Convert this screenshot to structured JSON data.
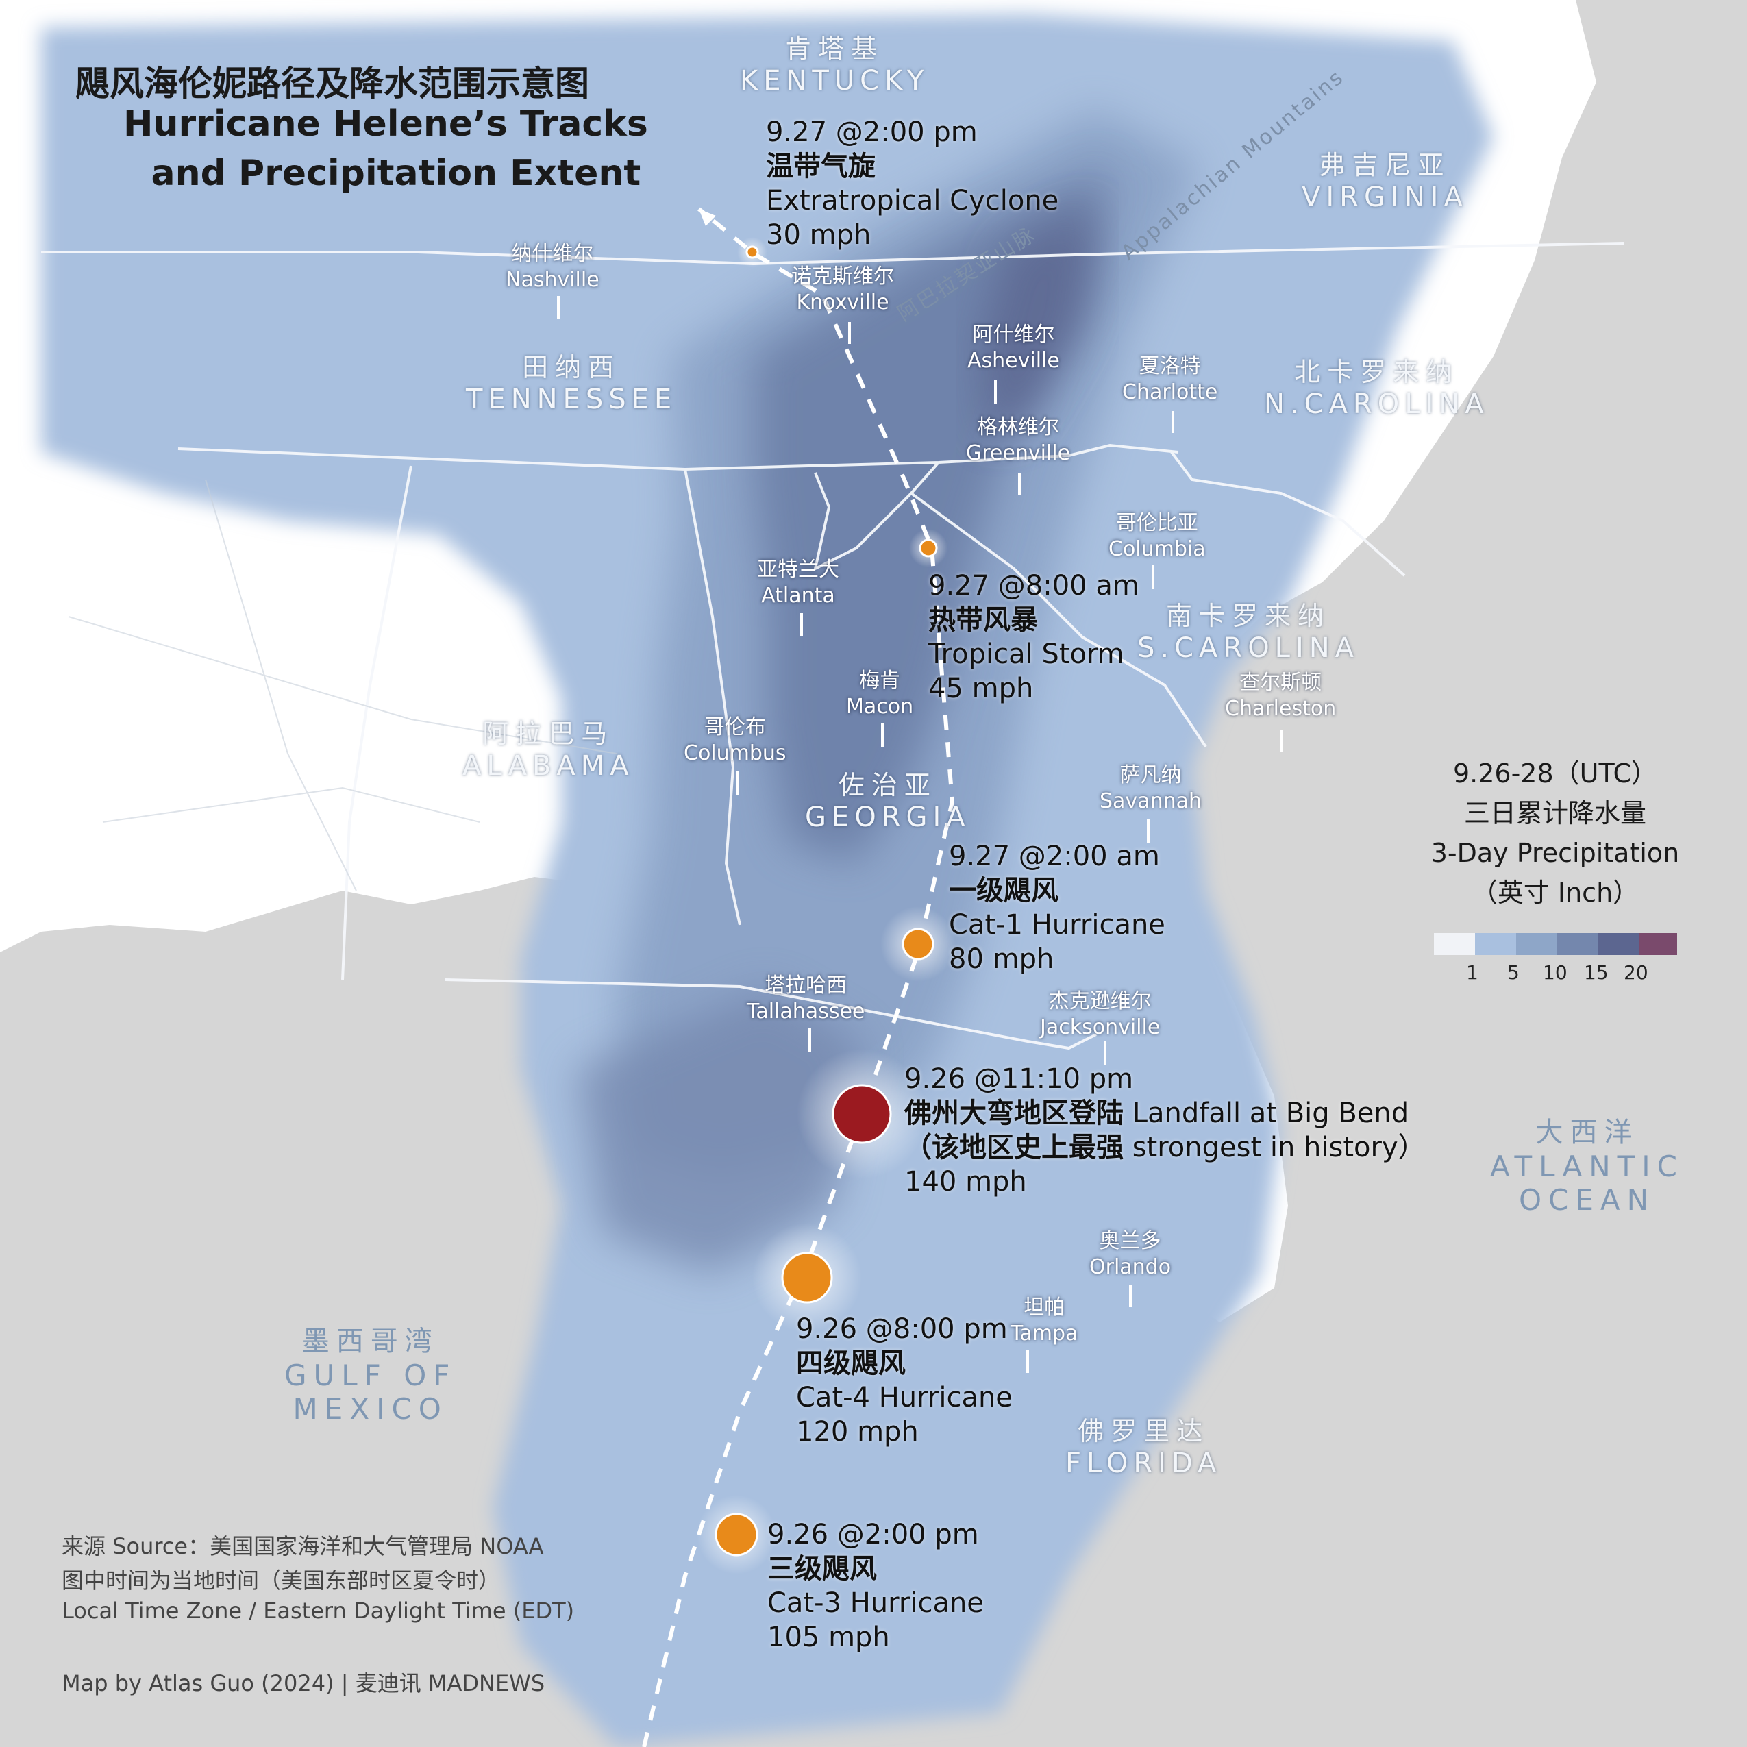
{
  "title": {
    "cn": "飓风海伦妮路径及降水范围示意图",
    "en_line1": "Hurricane Helene’s Tracks",
    "en_line2": "and Precipitation Extent"
  },
  "states": [
    {
      "cn": "肯塔基",
      "en": "KENTUCKY"
    },
    {
      "cn": "弗吉尼亚",
      "en": "VIRGINIA"
    },
    {
      "cn": "田纳西",
      "en": "TENNESSEE"
    },
    {
      "cn": "北卡罗来纳",
      "en": "N.CAROLINA"
    },
    {
      "cn": "南卡罗来纳",
      "en": "S.CAROLINA"
    },
    {
      "cn": "阿拉巴马",
      "en": "ALABAMA"
    },
    {
      "cn": "佐治亚",
      "en": "GEORGIA"
    },
    {
      "cn": "佛罗里达",
      "en": "FLORIDA"
    }
  ],
  "seas": [
    {
      "cn": "墨西哥湾",
      "en1": "GULF OF",
      "en2": "MEXICO"
    },
    {
      "cn": "大西洋",
      "en1": "ATLANTIC",
      "en2": "OCEAN"
    }
  ],
  "mountains": {
    "cn": "阿巴拉契亚山脉",
    "en": "Appalachian Mountains"
  },
  "cities": [
    {
      "cn": "纳什维尔",
      "en": "Nashville"
    },
    {
      "cn": "诺克斯维尔",
      "en": "Knoxville"
    },
    {
      "cn": "阿什维尔",
      "en": "Asheville"
    },
    {
      "cn": "夏洛特",
      "en": "Charlotte"
    },
    {
      "cn": "格林维尔",
      "en": "Greenville"
    },
    {
      "cn": "哥伦比亚",
      "en": "Columbia"
    },
    {
      "cn": "亚特兰大",
      "en": "Atlanta"
    },
    {
      "cn": "梅肯",
      "en": "Macon"
    },
    {
      "cn": "哥伦布",
      "en": "Columbus"
    },
    {
      "cn": "查尔斯顿",
      "en": "Charleston"
    },
    {
      "cn": "萨凡纳",
      "en": "Savannah"
    },
    {
      "cn": "塔拉哈西",
      "en": "Tallahassee"
    },
    {
      "cn": "杰克逊维尔",
      "en": "Jacksonville"
    },
    {
      "cn": "奥兰多",
      "en": "Orlando"
    },
    {
      "cn": "坦帕",
      "en": "Tampa"
    }
  ],
  "track_points": [
    {
      "time": "9.26 @2:00 pm",
      "cn": "三级飓风",
      "en": "Cat-3 Hurricane",
      "speed": "105 mph"
    },
    {
      "time": "9.26 @8:00 pm",
      "cn": "四级飓风",
      "en": "Cat-4 Hurricane",
      "speed": "120 mph"
    },
    {
      "time": "9.26 @11:10 pm",
      "cn": "佛州大弯地区登陆",
      "en": "Landfall at Big Bend",
      "cn2": "（该地区史上最强",
      "en2": "strongest in history）",
      "speed": "140 mph"
    },
    {
      "time": "9.27 @2:00 am",
      "cn": "一级飓风",
      "en": "Cat-1 Hurricane",
      "speed": "80 mph"
    },
    {
      "time": "9.27 @8:00 am",
      "cn": "热带风暴",
      "en": "Tropical Storm",
      "speed": "45 mph"
    },
    {
      "time": "9.27 @2:00 pm",
      "cn": "温带气旋",
      "en": "Extratropical Cyclone",
      "speed": "30 mph"
    }
  ],
  "legend": {
    "line1": "9.26-28（UTC）",
    "line2": "三日累计降水量",
    "line3": "3-Day Precipitation",
    "line4": "（英寸 Inch）",
    "ticks": [
      "1",
      "5",
      "10",
      "15",
      "20"
    ],
    "colors": [
      "#f1f3f7",
      "#a9c0df",
      "#8ea6c8",
      "#7487ad",
      "#5c6690",
      "#7a4a6c"
    ]
  },
  "source": {
    "line1": "来源 Source：美国国家海洋和大气管理局 NOAA",
    "line2": "图中时间为当地时间（美国东部时区夏令时）",
    "line3": "Local Time Zone / Eastern Daylight Time (EDT)",
    "credit": "Map by Atlas Guo (2024)  |  麦迪讯 MADNEWS"
  },
  "colors": {
    "land_outside": "#ffffff",
    "ocean": "#d6d6d6",
    "precip_light": "#a6bedf",
    "precip_mid": "#8aa2c6",
    "precip_heavy": "#6a7ea6",
    "hurricane_orange": "#e88a1a",
    "landfall_red": "#9b1a20"
  }
}
